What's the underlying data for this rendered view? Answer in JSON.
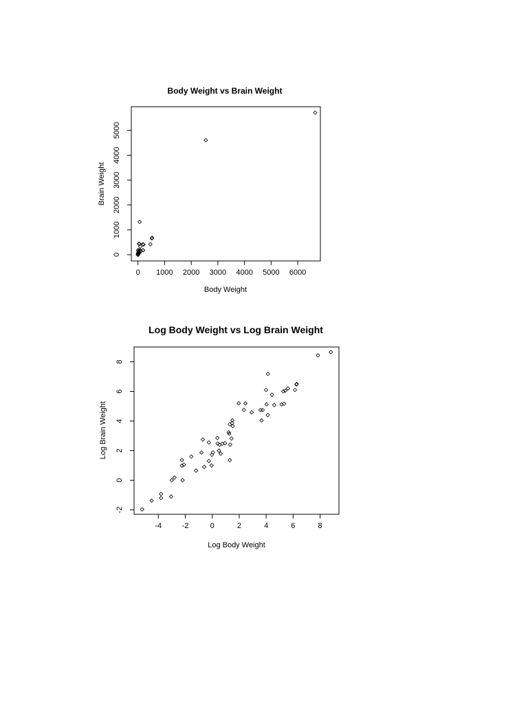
{
  "chart_data": [
    {
      "type": "scatter",
      "title": "Body Weight vs Brain Weight",
      "xlabel": "Body Weight",
      "ylabel": "Brain Weight",
      "xlim": [
        -250,
        6850
      ],
      "ylim": [
        -250,
        5950
      ],
      "xticks": [
        0,
        1000,
        2000,
        3000,
        4000,
        5000,
        6000
      ],
      "yticks": [
        0,
        1000,
        2000,
        3000,
        4000,
        5000
      ],
      "grid": false,
      "legend": "none",
      "marker": "diamond",
      "points": [
        [
          6654,
          5712
        ],
        [
          2547,
          4603
        ],
        [
          62,
          1320
        ],
        [
          521,
          655
        ],
        [
          529,
          680
        ],
        [
          465,
          423
        ],
        [
          207,
          406
        ],
        [
          187,
          419
        ],
        [
          36,
          440
        ],
        [
          100,
          157
        ],
        [
          192,
          180
        ],
        [
          187,
          180
        ],
        [
          85,
          325
        ],
        [
          60,
          81
        ],
        [
          55,
          175
        ],
        [
          52,
          440
        ],
        [
          35,
          56
        ],
        [
          27.7,
          115
        ],
        [
          14.8,
          98.2
        ],
        [
          10.5,
          179.5
        ],
        [
          10.55,
          179.5
        ],
        [
          6.8,
          179
        ],
        [
          4.19,
          58
        ],
        [
          3.5,
          10.8
        ],
        [
          3.3,
          25.6
        ],
        [
          3,
          25
        ],
        [
          2.5,
          12.1
        ],
        [
          1.41,
          17.5
        ],
        [
          1.04,
          5.5
        ],
        [
          1.0,
          6.6
        ],
        [
          0.92,
          5.7
        ],
        [
          0.75,
          12.3
        ],
        [
          0.55,
          2.4
        ],
        [
          0.28,
          1.9
        ],
        [
          0.12,
          1.0
        ],
        [
          0.1,
          4.0
        ],
        [
          0.048,
          0.33
        ],
        [
          0.023,
          0.4
        ],
        [
          0.01,
          0.25
        ],
        [
          0.005,
          0.14
        ]
      ]
    },
    {
      "type": "scatter",
      "title": "Log Body Weight vs Log Brain Weight",
      "xlabel": "Log Body Weight",
      "ylabel": "Log Brain Weight",
      "xlim": [
        -5.8,
        9.4
      ],
      "ylim": [
        -2.3,
        9.0
      ],
      "xticks": [
        -4,
        -2,
        0,
        2,
        4,
        6,
        8
      ],
      "yticks": [
        -2,
        0,
        2,
        4,
        6,
        8
      ],
      "grid": false,
      "legend": "none",
      "marker": "diamond",
      "points": [
        [
          8.8,
          8.65
        ],
        [
          7.84,
          8.44
        ],
        [
          6.26,
          6.5
        ],
        [
          6.25,
          6.47
        ],
        [
          6.14,
          6.1
        ],
        [
          5.62,
          6.2
        ],
        [
          5.42,
          6.05
        ],
        [
          5.27,
          6.0
        ],
        [
          5.33,
          5.17
        ],
        [
          5.14,
          5.12
        ],
        [
          4.6,
          5.08
        ],
        [
          4.43,
          5.78
        ],
        [
          4.13,
          7.18
        ],
        [
          3.99,
          6.1
        ],
        [
          4.03,
          5.13
        ],
        [
          4.12,
          4.4
        ],
        [
          3.74,
          4.74
        ],
        [
          3.58,
          4.74
        ],
        [
          3.66,
          4.04
        ],
        [
          2.93,
          4.59
        ],
        [
          2.46,
          5.19
        ],
        [
          2.35,
          4.75
        ],
        [
          1.96,
          5.2
        ],
        [
          1.5,
          4.05
        ],
        [
          1.48,
          3.85
        ],
        [
          1.52,
          3.66
        ],
        [
          1.3,
          3.78
        ],
        [
          1.22,
          3.24
        ],
        [
          1.26,
          3.14
        ],
        [
          1.43,
          2.82
        ],
        [
          1.33,
          2.4
        ],
        [
          1.3,
          1.36
        ],
        [
          0.95,
          2.5
        ],
        [
          0.75,
          2.46
        ],
        [
          0.55,
          2.4
        ],
        [
          0.4,
          2.48
        ],
        [
          0.38,
          2.86
        ],
        [
          0.5,
          2.0
        ],
        [
          0.62,
          1.8
        ],
        [
          0.05,
          1.88
        ],
        [
          -0.03,
          1.72
        ],
        [
          -0.25,
          2.55
        ],
        [
          -0.7,
          2.75
        ],
        [
          -0.8,
          1.87
        ],
        [
          -0.6,
          0.9
        ],
        [
          -0.25,
          1.3
        ],
        [
          -0.05,
          1.0
        ],
        [
          -1.2,
          0.65
        ],
        [
          -1.55,
          1.6
        ],
        [
          -2.1,
          1.05
        ],
        [
          -2.25,
          1.36
        ],
        [
          -2.2,
          0.0
        ],
        [
          -2.8,
          0.18
        ],
        [
          -3.0,
          0.0
        ],
        [
          -2.25,
          0.98
        ],
        [
          -3.05,
          -1.1
        ],
        [
          -3.8,
          -0.93
        ],
        [
          -3.8,
          -1.2
        ],
        [
          -4.5,
          -1.38
        ],
        [
          -5.2,
          -1.97
        ]
      ]
    }
  ]
}
